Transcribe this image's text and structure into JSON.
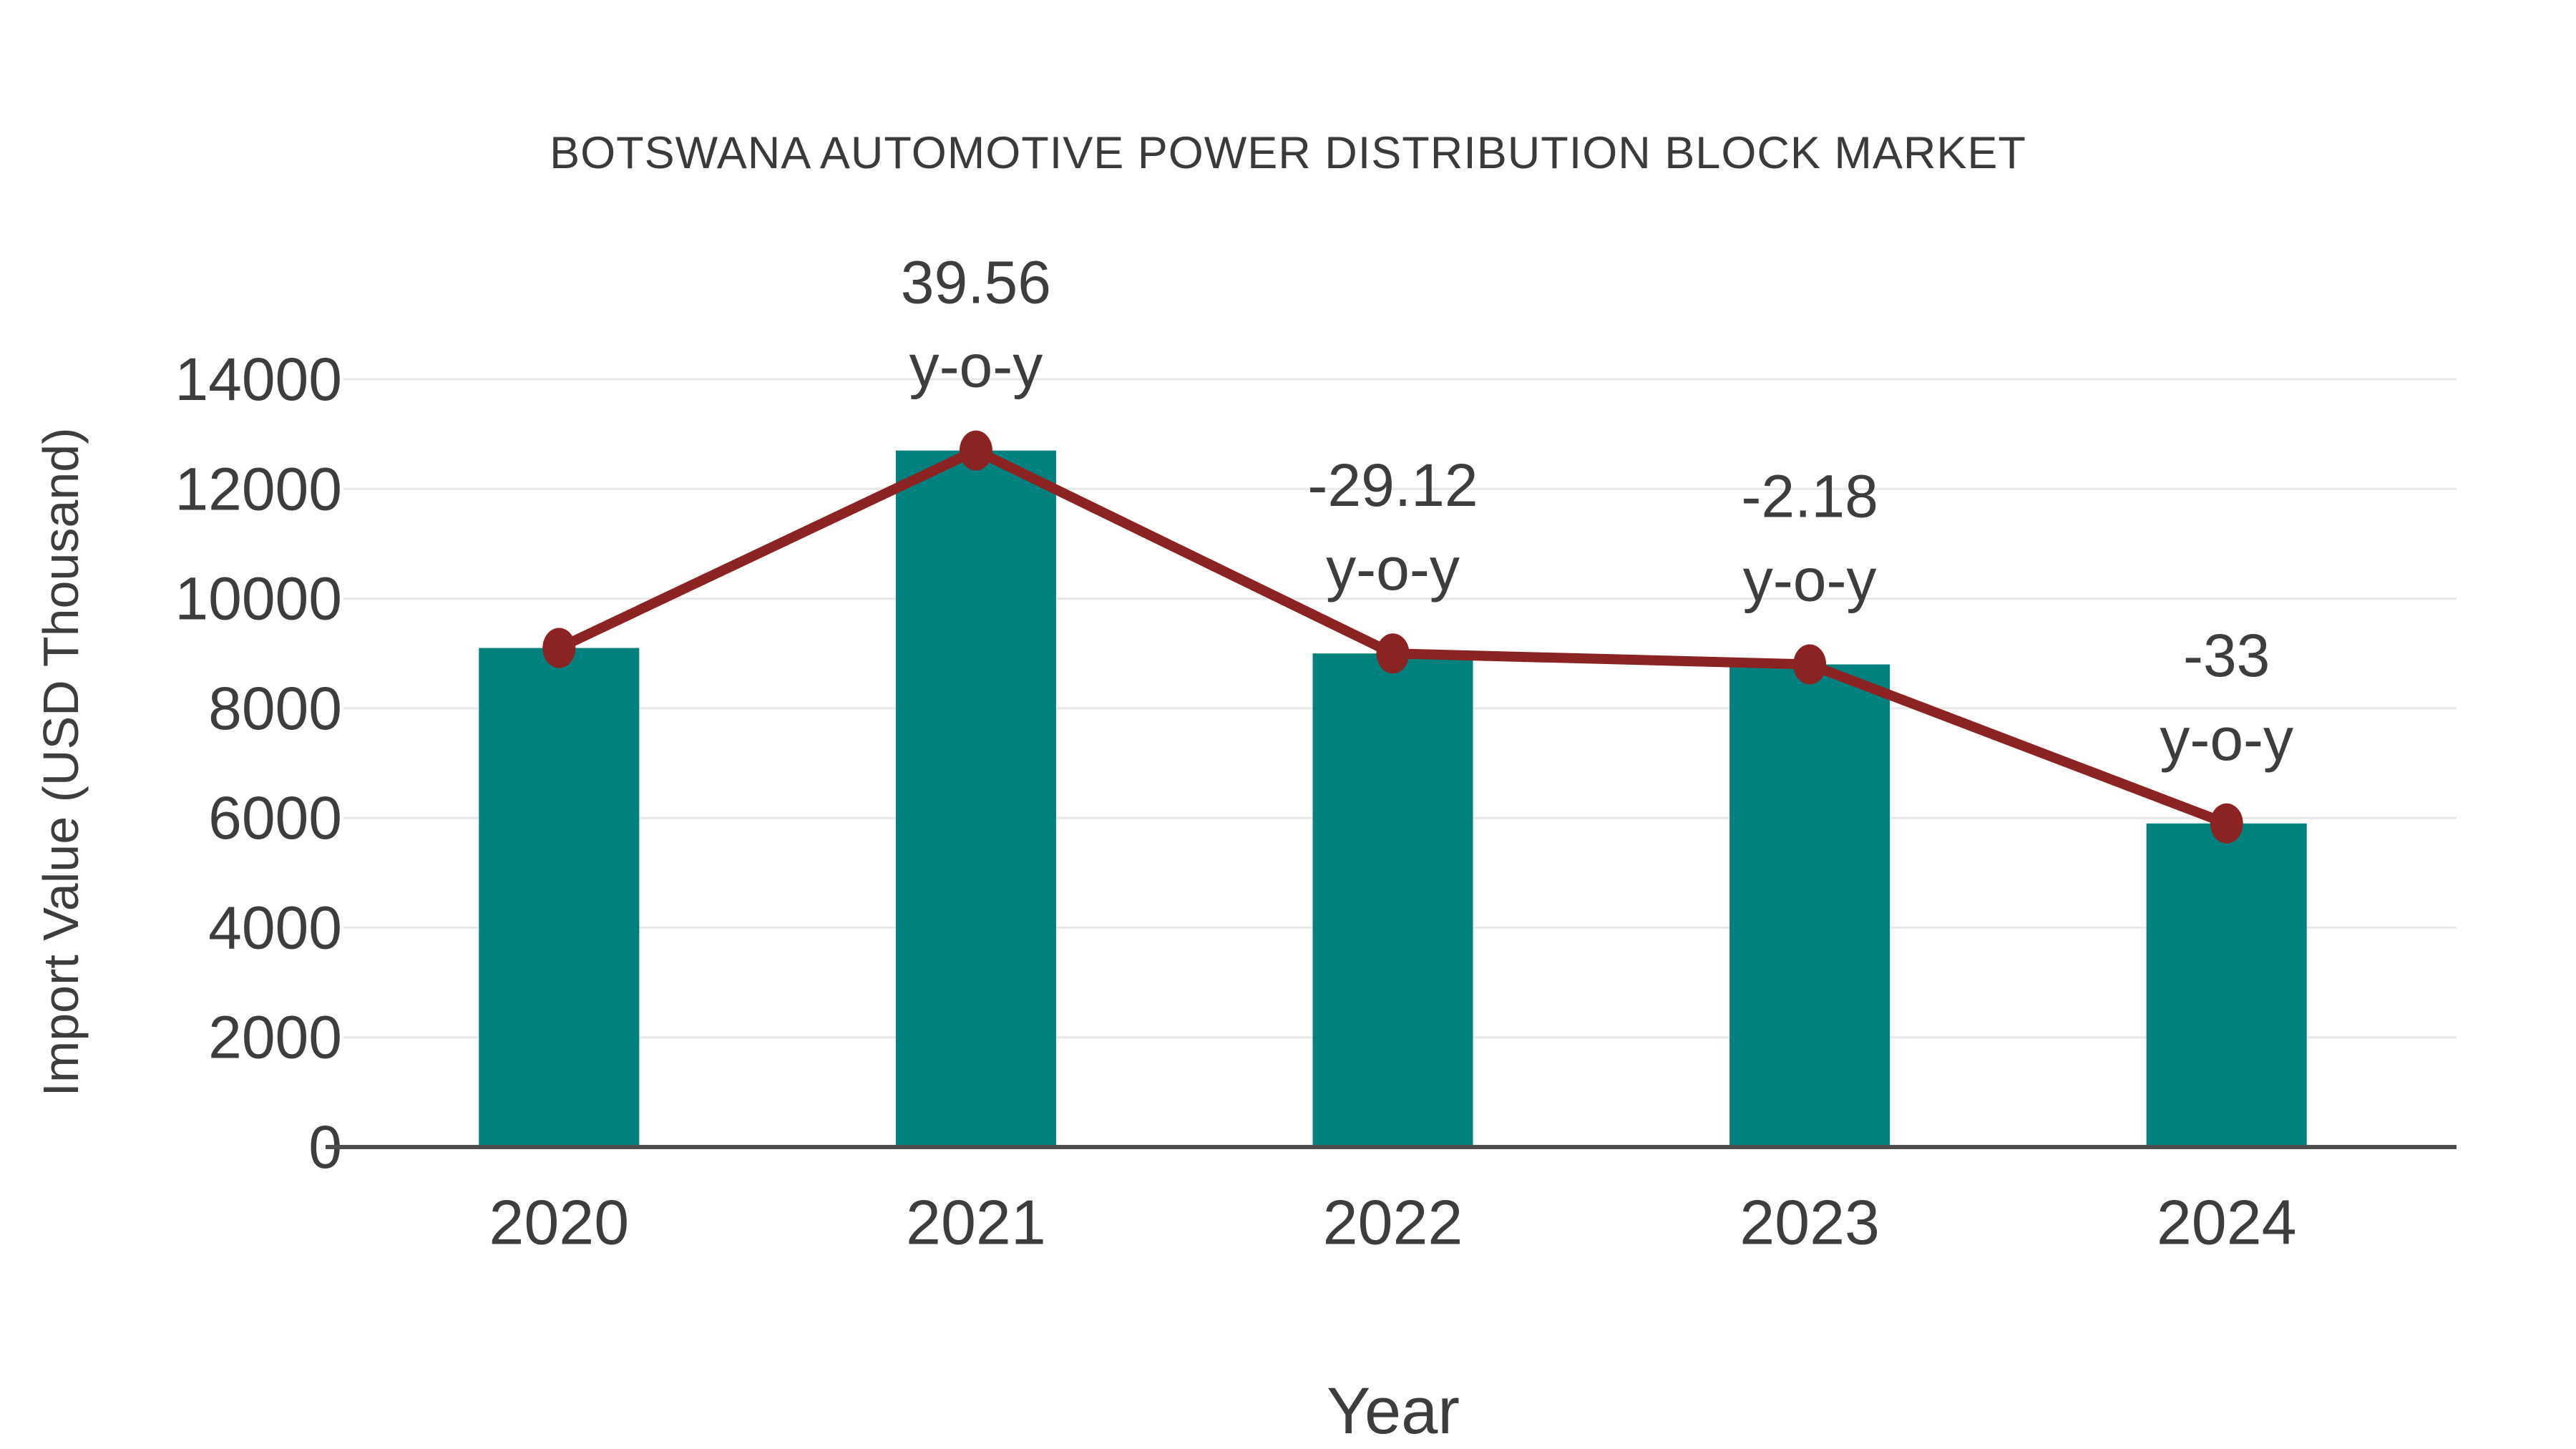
{
  "chart_data": {
    "type": "bar",
    "title": "BOTSWANA AUTOMOTIVE POWER DISTRIBUTION BLOCK MARKET",
    "xlabel": "Year",
    "ylabel": "Import Value (USD Thousand)",
    "categories": [
      "2020",
      "2021",
      "2022",
      "2023",
      "2024"
    ],
    "series": [
      {
        "name": "import-value-bars",
        "type": "bar",
        "values": [
          9100,
          12700,
          9000,
          8800,
          5900
        ]
      },
      {
        "name": "import-value-trend-line",
        "type": "line",
        "values": [
          9100,
          12700,
          9000,
          8800,
          5900
        ]
      }
    ],
    "annotations": [
      {
        "category": "2021",
        "line1": "39.56",
        "line2": "y-o-y"
      },
      {
        "category": "2022",
        "line1": "-29.12",
        "line2": "y-o-y"
      },
      {
        "category": "2023",
        "line1": "-2.18",
        "line2": "y-o-y"
      },
      {
        "category": "2024",
        "line1": "-33",
        "line2": "y-o-y"
      }
    ],
    "ylim": [
      0,
      14000
    ],
    "yticks": [
      0,
      2000,
      4000,
      6000,
      8000,
      10000,
      12000,
      14000
    ],
    "grid": "horizontal",
    "legend": "none",
    "colors": {
      "bar": "#01817D",
      "line": "#8B2323",
      "marker": "#8B2323",
      "text": "#3D3D3D",
      "grid": "#E8E8E8",
      "axis": "#4D4D4D",
      "background": "#FFFFFF"
    }
  }
}
